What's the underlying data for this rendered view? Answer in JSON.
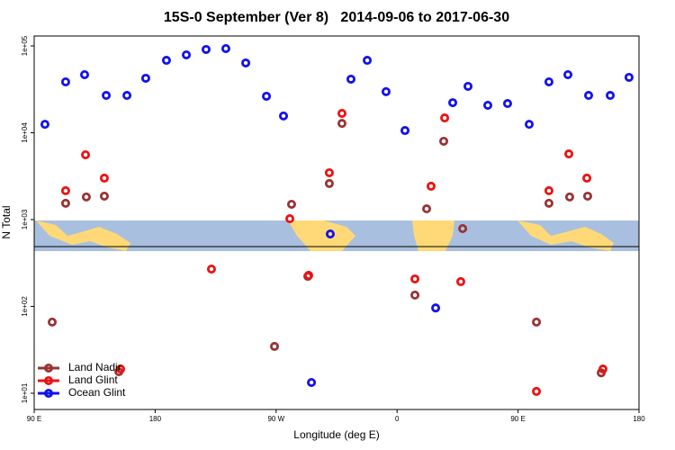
{
  "chart_data": {
    "type": "scatter",
    "title": "15S-0 September (Ver 8)   2014-09-06 to 2017-06-30",
    "x_label": "Longitude (deg E)",
    "y_label": "N Total",
    "log_y": true,
    "legend": "lower left",
    "xlim": [
      90,
      540
    ],
    "ylim": [
      6.5,
      130000
    ],
    "xticks": [
      {
        "value": 90,
        "label": "90 E"
      },
      180,
      {
        "value": 270,
        "label": "90 W"
      },
      {
        "value": 360,
        "label": "0"
      },
      {
        "value": 450,
        "label": "90 E"
      },
      {
        "value": 540,
        "label": "180"
      }
    ],
    "yticks": [
      {
        "value": 10,
        "label": "1e+01"
      },
      {
        "value": 100,
        "label": "1e+02"
      },
      {
        "value": 1000,
        "label": "1e+03"
      },
      {
        "value": 10000,
        "label": "1e+04"
      },
      {
        "value": 100000,
        "label": "1e+05"
      }
    ],
    "series": [
      {
        "name": "Land Nadir",
        "color": "#993333",
        "x": [
          103.4,
          113.4,
          128.8,
          142.2,
          153,
          268.8,
          281.5,
          293.6,
          309.6,
          319,
          373.3,
          382,
          394.7,
          408.8,
          463.7,
          473,
          488.4,
          501.8,
          511.9
        ],
        "values": [
          66,
          1540,
          1820,
          1860,
          17.7,
          34.6,
          1500,
          222,
          2600,
          12800,
          135,
          1330,
          7980,
          787,
          66,
          1540,
          1820,
          1860,
          17.2
        ]
      },
      {
        "name": "Land Glint",
        "color": "#ee1111",
        "x": [
          113.4,
          128.2,
          142.2,
          154.3,
          221.9,
          294.2,
          280.2,
          309.6,
          319,
          373.3,
          385.3,
          395.4,
          407.4,
          463.7,
          473,
          487.8,
          501.2,
          513.2
        ],
        "values": [
          2150,
          5570,
          3000,
          19,
          269,
          228,
          1023,
          3460,
          16700,
          207,
          2420,
          14800,
          193,
          10.5,
          2150,
          5700,
          3000,
          19
        ]
      },
      {
        "name": "Ocean Glint",
        "color": "#1111ee",
        "x": [
          98,
          113.4,
          127.5,
          143.6,
          159,
          173,
          188.4,
          203.2,
          217.9,
          232.6,
          247.4,
          262.8,
          275.5,
          310.3,
          325.7,
          337.8,
          351.8,
          365.9,
          388.7,
          401.4,
          412.8,
          427.5,
          442.2,
          458.3,
          473,
          487.1,
          502.5,
          518.6,
          532.6,
          296.3
        ],
        "values": [
          12500,
          38500,
          46600,
          26900,
          26900,
          42400,
          68200,
          78800,
          91000,
          93100,
          63600,
          26300,
          15600,
          682,
          41400,
          68200,
          29700,
          10600,
          96,
          22200,
          34200,
          20700,
          21700,
          12500,
          38500,
          46600,
          26900,
          26900,
          43400,
          13.3
        ]
      }
    ]
  }
}
